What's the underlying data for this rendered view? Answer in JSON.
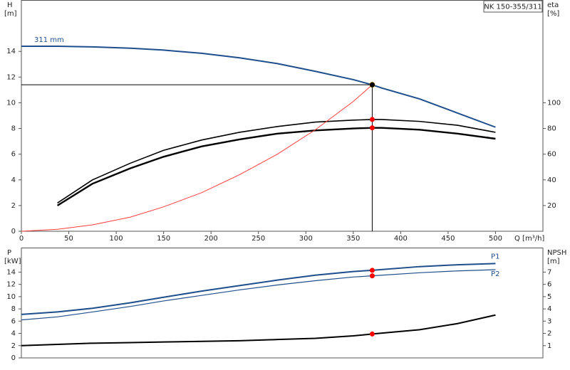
{
  "chart_data": [
    {
      "type": "line",
      "title": "NK 150-355/311",
      "ylabel": "H",
      "yunit": "[m]",
      "y2label": "eta",
      "y2unit": "[%]",
      "xlabel": "Q [m³/h]",
      "x": [
        0,
        38,
        75,
        115,
        150,
        190,
        230,
        270,
        310,
        350,
        370,
        380,
        420,
        460,
        500
      ],
      "xlim": [
        0,
        550
      ],
      "xticks": [
        0,
        50,
        100,
        150,
        200,
        250,
        300,
        350,
        400,
        450,
        500
      ],
      "ylim": [
        0,
        18
      ],
      "yticks": [
        0,
        2,
        4,
        6,
        8,
        10,
        12,
        14
      ],
      "y2lim": [
        0,
        180
      ],
      "y2ticks": [
        20,
        40,
        60,
        80,
        100
      ],
      "marked_x": 370,
      "series": [
        {
          "name": "311 mm",
          "color": "#1f4e8c",
          "width": 2,
          "marker_color": "#ffd700",
          "guide": true,
          "values": [
            14.4,
            14.4,
            14.35,
            14.25,
            14.1,
            13.85,
            13.5,
            13.05,
            12.45,
            11.8,
            11.4,
            11.15,
            10.3,
            9.2,
            8.1
          ]
        },
        {
          "color": "#000000",
          "width": 1.6,
          "axis": "y2",
          "marker_color": "#ff0000",
          "values": [
            null,
            22,
            40,
            53,
            63,
            71,
            77,
            81.5,
            85,
            86.5,
            87,
            87,
            85.5,
            82.5,
            77
          ]
        },
        {
          "color": "#000000",
          "width": 2.4,
          "axis": "y2",
          "marker_color": "#ff0000",
          "values": [
            null,
            20,
            37,
            49,
            58,
            66,
            71.5,
            76,
            78.5,
            80,
            80.5,
            80.5,
            79,
            76,
            72
          ]
        },
        {
          "color": "#ff3b3b",
          "width": 1,
          "values": [
            0,
            0.15,
            0.5,
            1.1,
            1.9,
            3.0,
            4.4,
            6.0,
            7.9,
            10.1,
            11.4,
            null,
            null,
            null,
            null
          ]
        }
      ]
    },
    {
      "type": "line",
      "ylabel": "P",
      "yunit": "[kW]",
      "y2label": "NPSH",
      "y2unit": "[m]",
      "x": [
        0,
        38,
        75,
        115,
        150,
        190,
        230,
        270,
        310,
        350,
        370,
        420,
        460,
        500
      ],
      "xlim": [
        0,
        550
      ],
      "ylim": [
        0,
        18
      ],
      "yticks": [
        0,
        2,
        4,
        6,
        8,
        10,
        12,
        14
      ],
      "y2lim": [
        0,
        9
      ],
      "y2ticks": [
        1,
        2,
        3,
        4,
        5,
        6,
        7
      ],
      "marked_x": 370,
      "series": [
        {
          "name": "P1",
          "color": "#1f4e8c",
          "width": 2,
          "marker_color": "#ff0000",
          "values": [
            7.1,
            7.5,
            8.1,
            9.0,
            9.9,
            10.9,
            11.8,
            12.7,
            13.5,
            14.1,
            14.3,
            14.9,
            15.2,
            15.4
          ]
        },
        {
          "name": "P2",
          "color": "#1f4e8c",
          "width": 1.2,
          "marker_color": "#ff0000",
          "values": [
            6.2,
            6.7,
            7.5,
            8.4,
            9.3,
            10.2,
            11.1,
            11.9,
            12.6,
            13.2,
            13.4,
            13.9,
            14.2,
            14.4
          ]
        },
        {
          "color": "#000000",
          "width": 2,
          "axis": "y2",
          "marker_color": "#ff0000",
          "values": [
            1.0,
            1.1,
            1.2,
            1.25,
            1.3,
            1.35,
            1.4,
            1.5,
            1.6,
            1.8,
            1.95,
            2.3,
            2.8,
            3.5
          ]
        }
      ]
    }
  ]
}
